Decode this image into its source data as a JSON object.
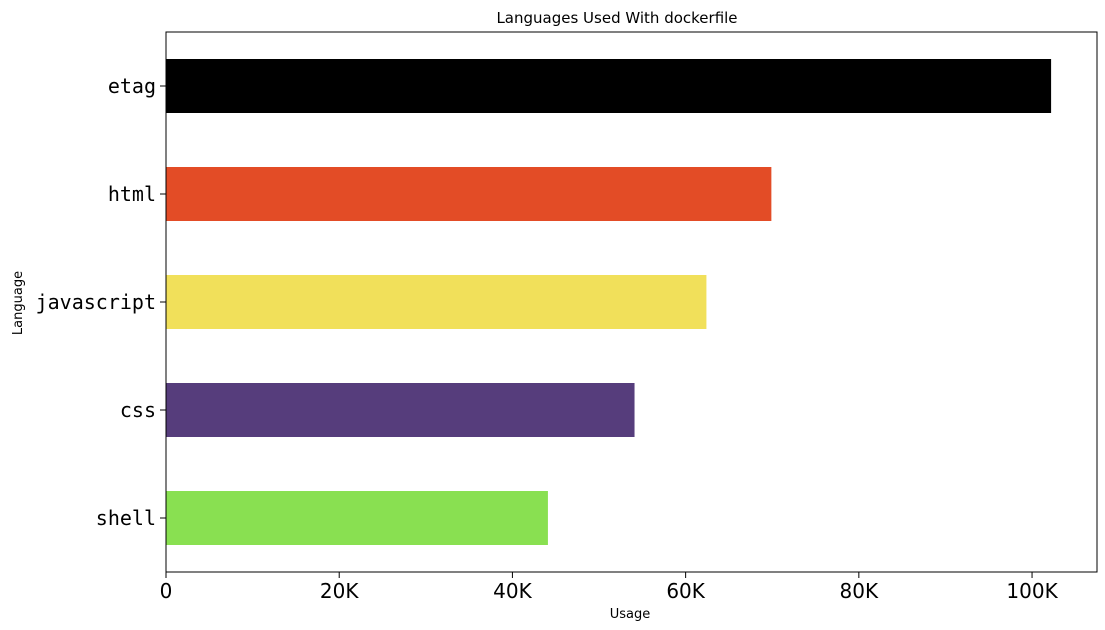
{
  "chart_data": {
    "type": "bar",
    "orientation": "horizontal",
    "title": "Languages Used With dockerfile",
    "xlabel": "Usage",
    "ylabel": "Language",
    "categories": [
      "shell",
      "css",
      "javascript",
      "html",
      "etag"
    ],
    "values": [
      44100,
      54100,
      62400,
      69900,
      102200
    ],
    "colors": [
      "#89e051",
      "#563d7c",
      "#f1e05a",
      "#e34c26",
      "#000000"
    ],
    "xlim": [
      0,
      107500
    ],
    "xticks": [
      0,
      20000,
      40000,
      60000,
      80000,
      100000
    ],
    "xtick_labels": [
      "0",
      "20K",
      "40K",
      "60K",
      "80K",
      "100K"
    ],
    "grid": false,
    "legend": "none"
  }
}
